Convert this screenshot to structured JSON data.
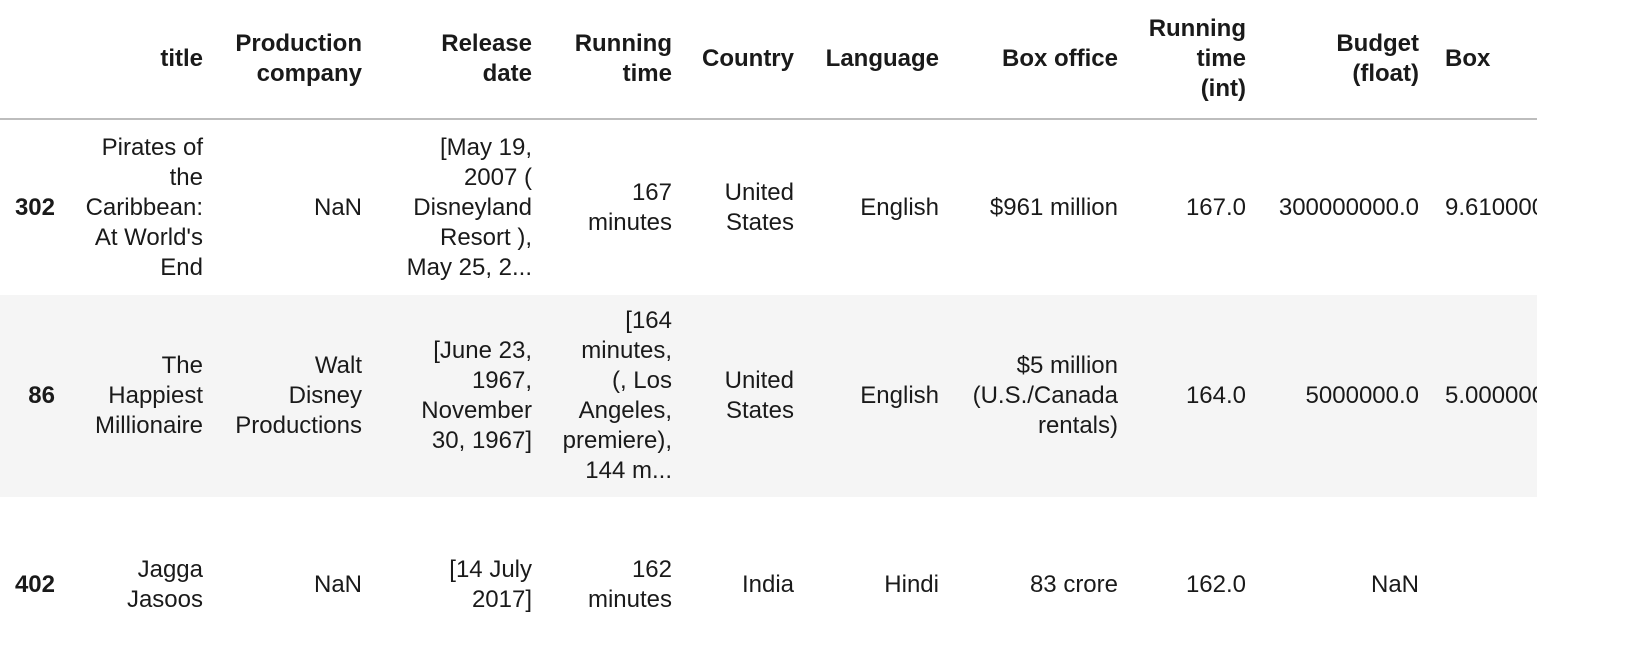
{
  "table": {
    "columns": [
      "",
      "title",
      "Production\ncompany",
      "Release\ndate",
      "Running\ntime",
      "Country",
      "Language",
      "Box office",
      "Running\ntime\n(int)",
      "Budget\n(float)",
      "Box"
    ],
    "rows": [
      {
        "index": "302",
        "cells": [
          "Pirates of\nthe\nCaribbean:\nAt World's\nEnd",
          "NaN",
          "[May 19,\n2007 (\nDisneyland\nResort ),\nMay 25, 2...",
          "167\nminutes",
          "United\nStates",
          "English",
          "$961 million",
          "167.0",
          "300000000.0",
          "9.610000"
        ]
      },
      {
        "index": "86",
        "cells": [
          "The\nHappiest\nMillionaire",
          "Walt\nDisney\nProductions",
          "[June 23,\n1967,\nNovember\n30, 1967]",
          "[164\nminutes,\n(, Los\nAngeles,\npremiere),\n144 m...",
          "United\nStates",
          "English",
          "$5 million\n(U.S./Canada\nrentals)",
          "164.0",
          "5000000.0",
          "5.000000"
        ]
      },
      {
        "index": "402",
        "cells": [
          "Jagga\nJasoos",
          "NaN",
          "[14 July\n2017]",
          "162\nminutes",
          "India",
          "Hindi",
          "83 crore",
          "162.0",
          "NaN",
          ""
        ]
      }
    ]
  }
}
